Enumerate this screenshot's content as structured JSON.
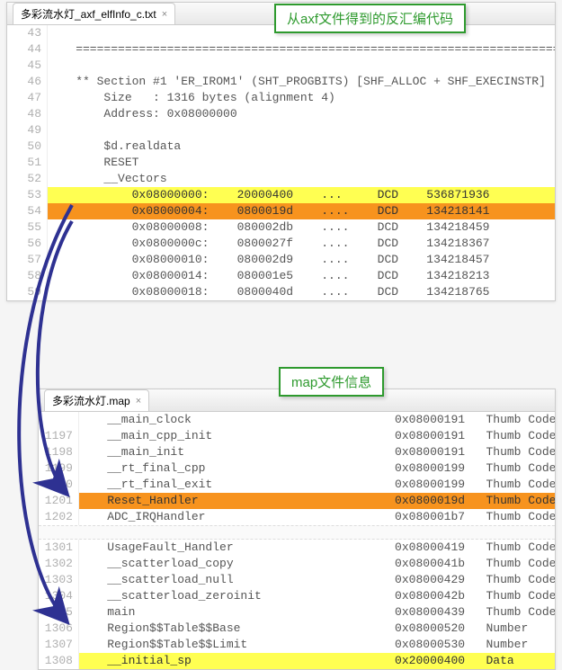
{
  "callouts": {
    "top": "从axf文件得到的反汇编代码",
    "mid": "map文件信息"
  },
  "top_panel": {
    "tab": "多彩流水灯_axf_elfInfo_c.txt",
    "gutter_start": 43,
    "lines": [
      {
        "n": 43,
        "txt": ""
      },
      {
        "n": 44,
        "txt": "    ========================================================================"
      },
      {
        "n": 45,
        "txt": ""
      },
      {
        "n": 46,
        "txt": "    ** Section #1 'ER_IROM1' (SHT_PROGBITS) [SHF_ALLOC + SHF_EXECINSTR]"
      },
      {
        "n": 47,
        "txt": "        Size   : 1316 bytes (alignment 4)"
      },
      {
        "n": 48,
        "txt": "        Address: 0x08000000"
      },
      {
        "n": 49,
        "txt": ""
      },
      {
        "n": 50,
        "txt": "        $d.realdata"
      },
      {
        "n": 51,
        "txt": "        RESET"
      },
      {
        "n": 52,
        "txt": "        __Vectors"
      },
      {
        "n": 53,
        "txt": "            0x08000000:    20000400    ...     DCD    536871936",
        "hl": "yellow"
      },
      {
        "n": 54,
        "txt": "            0x08000004:    0800019d    ....    DCD    134218141",
        "hl": "orange"
      },
      {
        "n": 55,
        "txt": "            0x08000008:    080002db    ....    DCD    134218459"
      },
      {
        "n": 56,
        "txt": "            0x0800000c:    0800027f    ....    DCD    134218367"
      },
      {
        "n": 57,
        "txt": "            0x08000010:    080002d9    ....    DCD    134218457"
      },
      {
        "n": 58,
        "txt": "            0x08000014:    080001e5    ....    DCD    134218213"
      },
      {
        "n": 59,
        "txt": "            0x08000018:    0800040d    ....    DCD    134218765"
      }
    ]
  },
  "mid_panel": {
    "tab": "多彩流水灯.map",
    "blocks": [
      {
        "gutter": [
          "",
          "1197",
          "1198",
          "1199",
          "1200",
          "1201",
          "1202"
        ],
        "rows": [
          {
            "txt": "    __main_clock                             0x08000191   Thumb Code"
          },
          {
            "txt": "    __main_cpp_init                          0x08000191   Thumb Code"
          },
          {
            "txt": "    __main_init                              0x08000191   Thumb Code"
          },
          {
            "txt": "    __rt_final_cpp                           0x08000199   Thumb Code"
          },
          {
            "txt": "    __rt_final_exit                          0x08000199   Thumb Code"
          },
          {
            "txt": "    Reset_Handler                            0x0800019d   Thumb Code",
            "hl": "orange"
          },
          {
            "txt": "    ADC_IRQHandler                           0x080001b7   Thumb Code"
          }
        ]
      },
      {
        "gutter": [
          "1301",
          "1302",
          "1303",
          "1304",
          "1305",
          "1306",
          "1307",
          "1308"
        ],
        "rows": [
          {
            "txt": "    UsageFault_Handler                       0x08000419   Thumb Code"
          },
          {
            "txt": "    __scatterload_copy                       0x0800041b   Thumb Code"
          },
          {
            "txt": "    __scatterload_null                       0x08000429   Thumb Code"
          },
          {
            "txt": "    __scatterload_zeroinit                   0x0800042b   Thumb Code"
          },
          {
            "txt": "    main                                     0x08000439   Thumb Code"
          },
          {
            "txt": "    Region$$Table$$Base                      0x08000520   Number"
          },
          {
            "txt": "    Region$$Table$$Limit                     0x08000530   Number"
          },
          {
            "txt": "    __initial_sp                             0x20000400   Data",
            "hl": "yellow"
          }
        ]
      }
    ]
  },
  "colors": {
    "yellow": "#ffff52",
    "orange": "#f7931e",
    "callout_border": "#2e9a2e",
    "arrow": "#2e3192"
  }
}
